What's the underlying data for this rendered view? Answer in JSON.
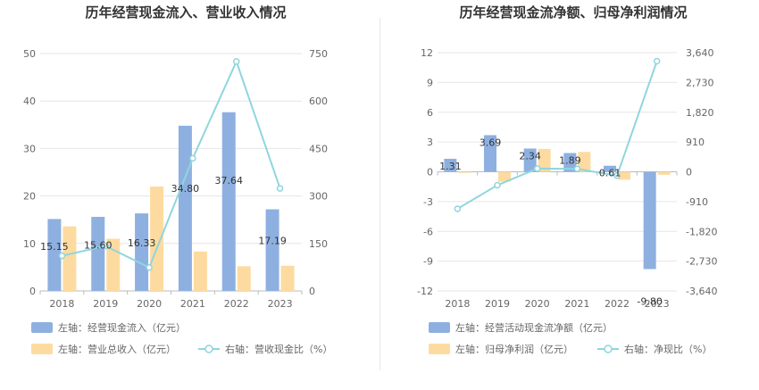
{
  "colors": {
    "blue": "#8eb0e0",
    "orange": "#fddba0",
    "line": "#8fd6de",
    "grid": "#e6e6e6",
    "axis": "#bbbbbb"
  },
  "chart_data": [
    {
      "type": "bar",
      "title": "历年经营现金流入、营业收入情况",
      "categories": [
        "2018",
        "2019",
        "2020",
        "2021",
        "2022",
        "2023"
      ],
      "left_axis": {
        "ticks": [
          "0",
          "10",
          "20",
          "30",
          "40",
          "50"
        ],
        "ylim": [
          0,
          50
        ]
      },
      "right_axis": {
        "ticks": [
          "0",
          "150",
          "300",
          "450",
          "600",
          "750"
        ],
        "ylim": [
          0,
          750
        ]
      },
      "series": [
        {
          "name": "左轴：经营现金流入（亿元）",
          "kind": "bar",
          "axis": "left",
          "color": "#8eb0e0",
          "values": [
            15.15,
            15.6,
            16.33,
            34.8,
            37.64,
            17.19
          ],
          "labels": [
            "15.15",
            "15.60",
            "16.33",
            "34.80",
            "37.64",
            "17.19"
          ]
        },
        {
          "name": "左轴：营业总收入（亿元）",
          "kind": "bar",
          "axis": "left",
          "color": "#fddba0",
          "values": [
            13.6,
            11.0,
            22.0,
            8.3,
            5.2,
            5.3
          ]
        },
        {
          "name": "右轴：营收现金比（%）",
          "kind": "line",
          "axis": "right",
          "color": "#8fd6de",
          "values": [
            111,
            142,
            74,
            419,
            725,
            324
          ]
        }
      ]
    },
    {
      "type": "bar",
      "title": "历年经营现金流净额、归母净利润情况",
      "categories": [
        "2018",
        "2019",
        "2020",
        "2021",
        "2022",
        "2023"
      ],
      "left_axis": {
        "ticks": [
          "-12",
          "-9",
          "-6",
          "-3",
          "0",
          "3",
          "6",
          "9",
          "12"
        ],
        "ylim": [
          -12,
          12
        ]
      },
      "right_axis": {
        "ticks": [
          "-3,640",
          "-2,730",
          "-1,820",
          "-910",
          "0",
          "910",
          "1,820",
          "2,730",
          "3,640"
        ],
        "ylim": [
          -3640,
          3640
        ]
      },
      "series": [
        {
          "name": "左轴：经营活动现金流净额（亿元）",
          "kind": "bar",
          "axis": "left",
          "color": "#8eb0e0",
          "values": [
            1.31,
            3.69,
            2.34,
            1.89,
            0.61,
            -9.8
          ],
          "labels": [
            "1.31",
            "3.69",
            "2.34",
            "1.89",
            "0.61",
            "-9.80"
          ]
        },
        {
          "name": "左轴：归母净利润（亿元）",
          "kind": "bar",
          "axis": "left",
          "color": "#fddba0",
          "values": [
            -0.1,
            -1.0,
            2.3,
            2.0,
            -0.8,
            -0.3
          ]
        },
        {
          "name": "右轴：净现比（%）",
          "kind": "line",
          "axis": "right",
          "color": "#8fd6de",
          "values": [
            -1130,
            -410,
            100,
            90,
            -120,
            3380
          ]
        }
      ]
    }
  ]
}
